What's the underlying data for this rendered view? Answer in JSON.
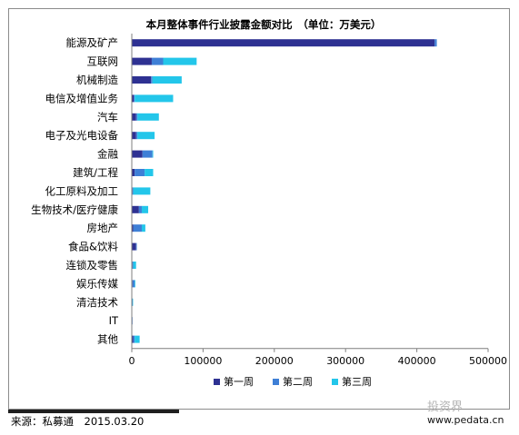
{
  "chart_data": {
    "type": "bar",
    "orientation": "horizontal",
    "stacked": true,
    "title": "本月整体事件行业披露金额对比　（单位：万美元）",
    "categories": [
      "能源及矿产",
      "互联网",
      "机械制造",
      "电信及增值业务",
      "汽车",
      "电子及光电设备",
      "金融",
      "建筑/工程",
      "化工原料及加工",
      "生物技术/医疗健康",
      "房地产",
      "食品&饮料",
      "连锁及零售",
      "娱乐传媒",
      "清洁技术",
      "IT",
      "其他"
    ],
    "series": [
      {
        "name": "第一周",
        "color": "#2e3192",
        "values": [
          425000,
          28000,
          27000,
          3000,
          6000,
          6000,
          15000,
          4000,
          1000,
          10000,
          2000,
          6000,
          1000,
          1000,
          500,
          200,
          2000
        ]
      },
      {
        "name": "第二周",
        "color": "#3e7fd6",
        "values": [
          3000,
          16000,
          2000,
          1000,
          2000,
          2000,
          14000,
          14000,
          1000,
          4000,
          12000,
          1000,
          1000,
          3000,
          500,
          300,
          2000
        ]
      },
      {
        "name": "第三周",
        "color": "#23c6ea",
        "values": [
          0,
          47000,
          41000,
          54000,
          30000,
          24000,
          1000,
          12000,
          24000,
          9000,
          5000,
          0,
          4000,
          1000,
          500,
          0,
          7000
        ]
      }
    ],
    "xlim": [
      0,
      500000
    ],
    "xticks": [
      "0",
      "100000",
      "200000",
      "300000",
      "400000",
      "500000"
    ],
    "grid": false,
    "legend_position": "bottom"
  },
  "footer": {
    "source": "来源：私募通　2015.03.20",
    "watermark_logo": "投资界",
    "watermark_url": "www.pedata.cn"
  }
}
